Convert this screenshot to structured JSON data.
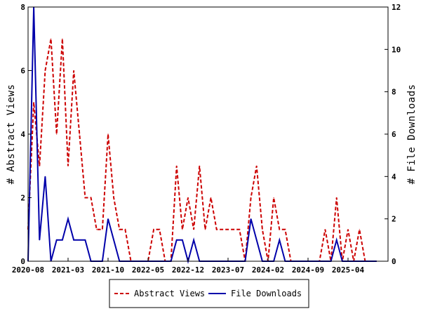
{
  "chart_data": {
    "type": "line",
    "title": "",
    "xlabel": "",
    "y_left_label": "# Abstract Views",
    "y_right_label": "# File Downloads",
    "y_left_ticks": [
      "0",
      "2",
      "4",
      "6",
      "8"
    ],
    "y_right_ticks": [
      "0",
      "2",
      "4",
      "6",
      "8",
      "10",
      "12"
    ],
    "y_left_lim": [
      0,
      8
    ],
    "y_right_lim": [
      0,
      12
    ],
    "x_range": [
      "2020-08",
      "2025-11"
    ],
    "x_ticks": [
      "2020-08",
      "2021-03",
      "2021-10",
      "2022-05",
      "2022-12",
      "2023-07",
      "2024-02",
      "2024-09",
      "2025-04"
    ],
    "grid": false,
    "legend_position": "bottom",
    "series": [
      {
        "name": "Abstract Views",
        "axis": "left",
        "color": "#cc0000",
        "style": "dashed",
        "points": [
          [
            "2020-08",
            1
          ],
          [
            "2020-09",
            5
          ],
          [
            "2020-10",
            3
          ],
          [
            "2020-11",
            6
          ],
          [
            "2020-12",
            7
          ],
          [
            "2021-01",
            4
          ],
          [
            "2021-02",
            7
          ],
          [
            "2021-03",
            3
          ],
          [
            "2021-04",
            6
          ],
          [
            "2021-05",
            4
          ],
          [
            "2021-06",
            2
          ],
          [
            "2021-07",
            2
          ],
          [
            "2021-08",
            1
          ],
          [
            "2021-09",
            1
          ],
          [
            "2021-10",
            4
          ],
          [
            "2021-11",
            2
          ],
          [
            "2021-12",
            1
          ],
          [
            "2022-01",
            1
          ],
          [
            "2022-02",
            0
          ],
          [
            "2022-03",
            0
          ],
          [
            "2022-04",
            0
          ],
          [
            "2022-05",
            0
          ],
          [
            "2022-06",
            1
          ],
          [
            "2022-07",
            1
          ],
          [
            "2022-08",
            0
          ],
          [
            "2022-09",
            0
          ],
          [
            "2022-10",
            3
          ],
          [
            "2022-11",
            1
          ],
          [
            "2022-12",
            2
          ],
          [
            "2023-01",
            1
          ],
          [
            "2023-02",
            3
          ],
          [
            "2023-03",
            1
          ],
          [
            "2023-04",
            2
          ],
          [
            "2023-05",
            1
          ],
          [
            "2023-06",
            1
          ],
          [
            "2023-07",
            1
          ],
          [
            "2023-08",
            1
          ],
          [
            "2023-09",
            1
          ],
          [
            "2023-10",
            0
          ],
          [
            "2023-11",
            2
          ],
          [
            "2023-12",
            3
          ],
          [
            "2024-01",
            1
          ],
          [
            "2024-02",
            0
          ],
          [
            "2024-03",
            2
          ],
          [
            "2024-04",
            1
          ],
          [
            "2024-05",
            1
          ],
          [
            "2024-06",
            0
          ],
          [
            "2024-07",
            0
          ],
          [
            "2024-08",
            0
          ],
          [
            "2024-09",
            0
          ],
          [
            "2024-10",
            0
          ],
          [
            "2024-11",
            0
          ],
          [
            "2024-12",
            1
          ],
          [
            "2025-01",
            0
          ],
          [
            "2025-02",
            2
          ],
          [
            "2025-03",
            0
          ],
          [
            "2025-04",
            1
          ],
          [
            "2025-05",
            0
          ],
          [
            "2025-06",
            1
          ],
          [
            "2025-07",
            0
          ],
          [
            "2025-08",
            0
          ],
          [
            "2025-09",
            0
          ]
        ]
      },
      {
        "name": "File Downloads",
        "axis": "right",
        "color": "#0000aa",
        "style": "solid",
        "points": [
          [
            "2020-08",
            0
          ],
          [
            "2020-09",
            12
          ],
          [
            "2020-10",
            1
          ],
          [
            "2020-11",
            4
          ],
          [
            "2020-12",
            0
          ],
          [
            "2021-01",
            1
          ],
          [
            "2021-02",
            1
          ],
          [
            "2021-03",
            2
          ],
          [
            "2021-04",
            1
          ],
          [
            "2021-05",
            1
          ],
          [
            "2021-06",
            1
          ],
          [
            "2021-07",
            0
          ],
          [
            "2021-08",
            0
          ],
          [
            "2021-09",
            0
          ],
          [
            "2021-10",
            2
          ],
          [
            "2021-11",
            1
          ],
          [
            "2021-12",
            0
          ],
          [
            "2022-01",
            0
          ],
          [
            "2022-02",
            0
          ],
          [
            "2022-03",
            0
          ],
          [
            "2022-04",
            0
          ],
          [
            "2022-05",
            0
          ],
          [
            "2022-06",
            0
          ],
          [
            "2022-07",
            0
          ],
          [
            "2022-08",
            0
          ],
          [
            "2022-09",
            0
          ],
          [
            "2022-10",
            1
          ],
          [
            "2022-11",
            1
          ],
          [
            "2022-12",
            0
          ],
          [
            "2023-01",
            1
          ],
          [
            "2023-02",
            0
          ],
          [
            "2023-03",
            0
          ],
          [
            "2023-04",
            0
          ],
          [
            "2023-05",
            0
          ],
          [
            "2023-06",
            0
          ],
          [
            "2023-07",
            0
          ],
          [
            "2023-08",
            0
          ],
          [
            "2023-09",
            0
          ],
          [
            "2023-10",
            0
          ],
          [
            "2023-11",
            2
          ],
          [
            "2023-12",
            1
          ],
          [
            "2024-01",
            0
          ],
          [
            "2024-02",
            0
          ],
          [
            "2024-03",
            0
          ],
          [
            "2024-04",
            1
          ],
          [
            "2024-05",
            0
          ],
          [
            "2024-06",
            0
          ],
          [
            "2024-07",
            0
          ],
          [
            "2024-08",
            0
          ],
          [
            "2024-09",
            0
          ],
          [
            "2024-10",
            0
          ],
          [
            "2024-11",
            0
          ],
          [
            "2024-12",
            0
          ],
          [
            "2025-01",
            0
          ],
          [
            "2025-02",
            1
          ],
          [
            "2025-03",
            0
          ],
          [
            "2025-04",
            0
          ],
          [
            "2025-05",
            0
          ],
          [
            "2025-06",
            0
          ],
          [
            "2025-07",
            0
          ],
          [
            "2025-08",
            0
          ],
          [
            "2025-09",
            0
          ]
        ]
      }
    ]
  }
}
